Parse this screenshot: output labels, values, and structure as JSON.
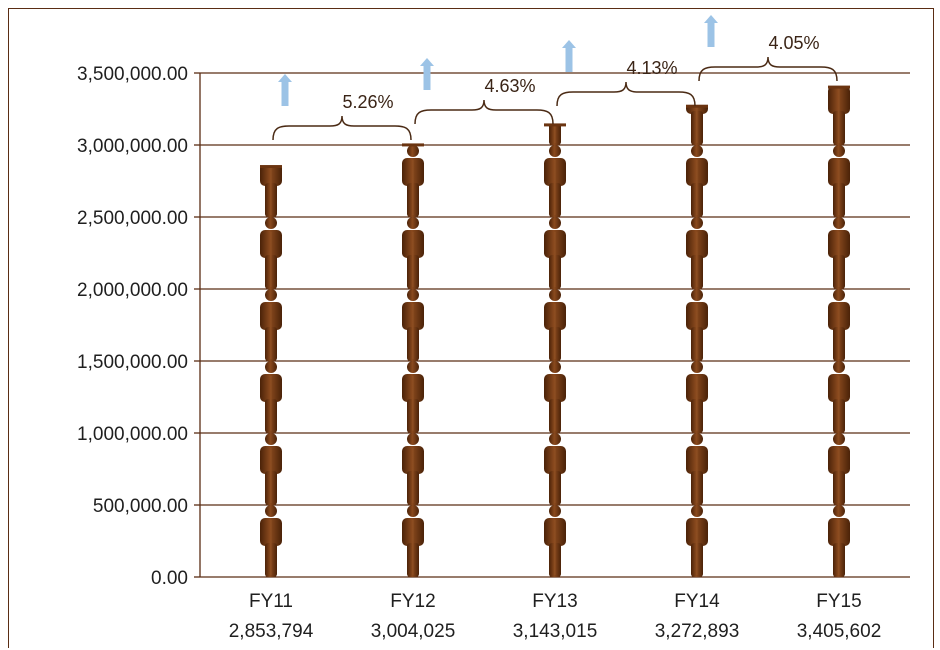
{
  "chart_data": {
    "type": "bar",
    "title": "",
    "xlabel": "",
    "ylabel": "",
    "ylim": [
      0,
      3500000
    ],
    "yticks": [
      "0.00",
      "500,000.00",
      "1,000,000.00",
      "1,500,000.00",
      "2,000,000.00",
      "2,500,000.00",
      "3,000,000.00",
      "3,500,000.00"
    ],
    "ytick_values": [
      0,
      500000,
      1000000,
      1500000,
      2000000,
      2500000,
      3000000,
      3500000
    ],
    "categories": [
      "FY11",
      "FY12",
      "FY13",
      "FY14",
      "FY15"
    ],
    "value_labels": [
      "2,853,794",
      "3,004,025",
      "3,143,015",
      "3,272,893",
      "3,405,602"
    ],
    "values": [
      2853794,
      3004025,
      3143015,
      3272893,
      3405602
    ],
    "growth_labels": [
      "5.26%",
      "4.63%",
      "4.13%",
      "4.05%"
    ],
    "grid": true,
    "legend": "none",
    "bar_style": "stacked person pictograms",
    "colors": {
      "figure": "#6b3410",
      "figure_highlight": "#9a5a2c",
      "grid": "#5a2d14",
      "arrow": "#9cc3e6"
    }
  }
}
